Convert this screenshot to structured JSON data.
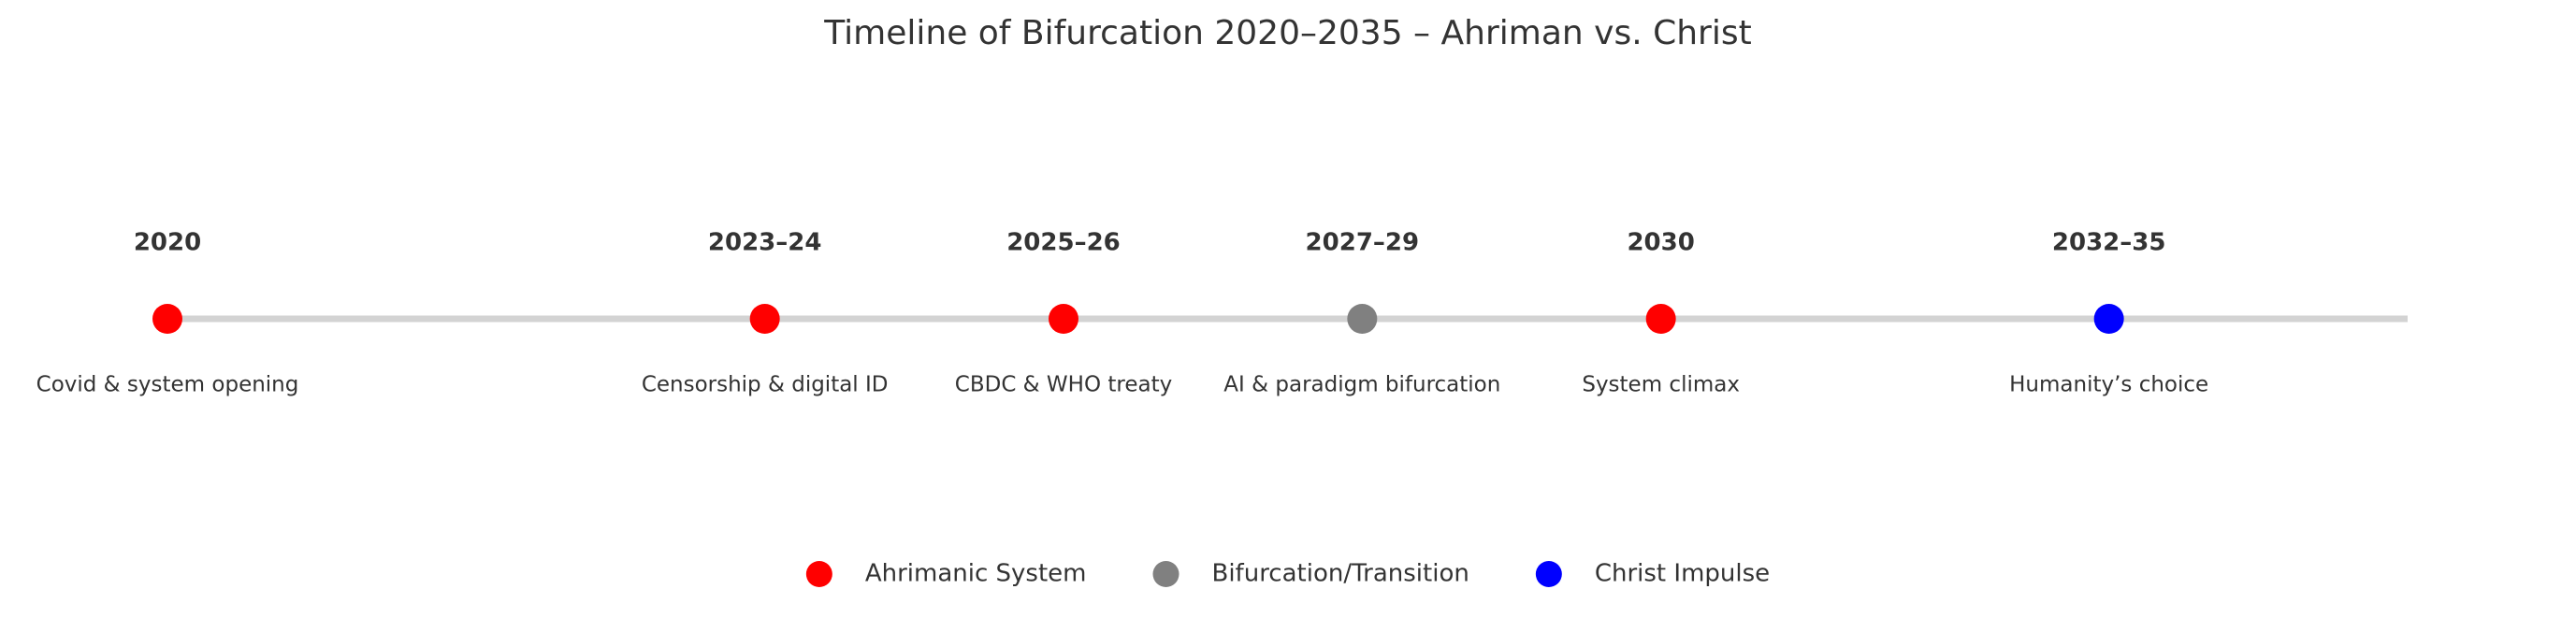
{
  "chart_data": {
    "type": "timeline",
    "title": "Timeline of Bifurcation 2020–2035 – Ahriman vs. Christ",
    "xlim": [
      2020,
      2035
    ],
    "legend": "bottom",
    "line_color": "#d3d3d3",
    "series": [
      {
        "name": "Ahrimanic System",
        "color": "#ff0000",
        "x": [
          2020,
          2024,
          2026,
          2030
        ],
        "labels": [
          "2020",
          "2023–24",
          "2025–26",
          "2030"
        ],
        "descriptions": [
          "Covid & system opening",
          "Censorship & digital ID",
          "CBDC & WHO treaty",
          "System climax"
        ]
      },
      {
        "name": "Bifurcation/Transition",
        "color": "#808080",
        "x": [
          2028
        ],
        "labels": [
          "2027–29"
        ],
        "descriptions": [
          "AI & paradigm bifurcation"
        ]
      },
      {
        "name": "Christ Impulse",
        "color": "#0000ff",
        "x": [
          2033
        ],
        "labels": [
          "2032–35"
        ],
        "descriptions": [
          "Humanity’s choice"
        ]
      }
    ]
  }
}
